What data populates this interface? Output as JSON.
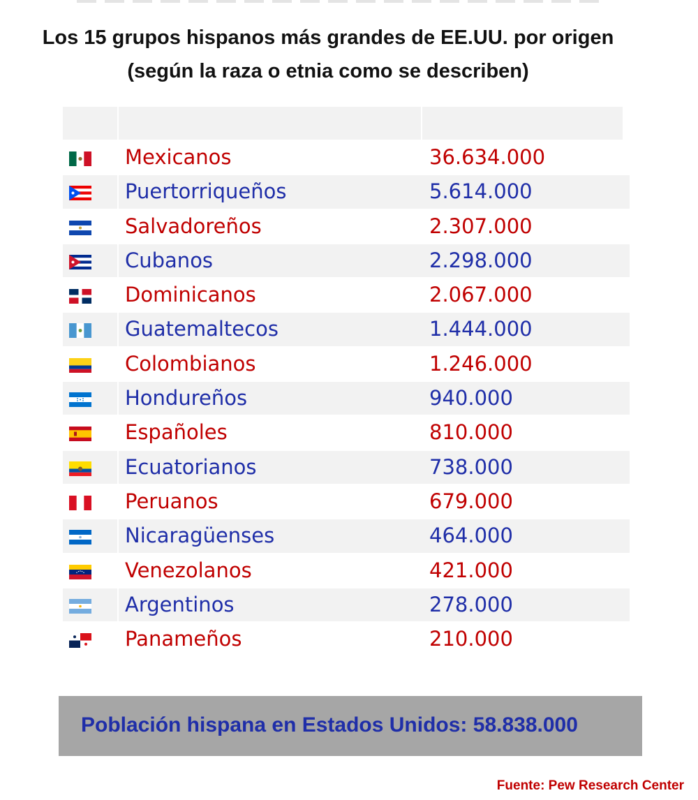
{
  "title_line1": "Los 15 grupos hispanos más grandes de EE.UU. por origen",
  "title_line2": "(según la raza o etnia como se describen)",
  "colors": {
    "red": "#c00000",
    "blue": "#1f2ea8",
    "header_bg": "#f2f2f2",
    "total_bg": "#a6a6a6"
  },
  "chart_data": {
    "type": "table",
    "columns": [
      "",
      "",
      ""
    ],
    "rows": [
      {
        "flag": "mexico-flag-icon",
        "group": "Mexicanos",
        "population": "36.634.000",
        "color": "#c00000"
      },
      {
        "flag": "puerto-rico-flag-icon",
        "group": "Puertorriqueños",
        "population": "5.614.000",
        "color": "#1f2ea8"
      },
      {
        "flag": "el-salvador-flag-icon",
        "group": "Salvadoreños",
        "population": "2.307.000",
        "color": "#c00000"
      },
      {
        "flag": "cuba-flag-icon",
        "group": "Cubanos",
        "population": "2.298.000",
        "color": "#1f2ea8"
      },
      {
        "flag": "dominican-republic-flag-icon",
        "group": "Dominicanos",
        "population": "2.067.000",
        "color": "#c00000"
      },
      {
        "flag": "guatemala-flag-icon",
        "group": "Guatemaltecos",
        "population": "1.444.000",
        "color": "#1f2ea8"
      },
      {
        "flag": "colombia-flag-icon",
        "group": "Colombianos",
        "population": "1.246.000",
        "color": "#c00000"
      },
      {
        "flag": "honduras-flag-icon",
        "group": "Hondureños",
        "population": "940.000",
        "color": "#1f2ea8"
      },
      {
        "flag": "spain-flag-icon",
        "group": "Españoles",
        "population": "810.000",
        "color": "#c00000"
      },
      {
        "flag": "ecuador-flag-icon",
        "group": "Ecuatorianos",
        "population": "738.000",
        "color": "#1f2ea8"
      },
      {
        "flag": "peru-flag-icon",
        "group": "Peruanos",
        "population": "679.000",
        "color": "#c00000"
      },
      {
        "flag": "nicaragua-flag-icon",
        "group": "Nicaragüenses",
        "population": "464.000",
        "color": "#1f2ea8"
      },
      {
        "flag": "venezuela-flag-icon",
        "group": "Venezolanos",
        "population": "421.000",
        "color": "#c00000"
      },
      {
        "flag": "argentina-flag-icon",
        "group": "Argentinos",
        "population": "278.000",
        "color": "#1f2ea8"
      },
      {
        "flag": "panama-flag-icon",
        "group": "Panameños",
        "population": "210.000",
        "color": "#c00000"
      }
    ]
  },
  "total": {
    "label": "Población hispana en Estados Unidos: 58.838.000",
    "color": "#1f2ea8"
  },
  "source": {
    "label": "Fuente: Pew Research Center",
    "color": "#c00000"
  }
}
